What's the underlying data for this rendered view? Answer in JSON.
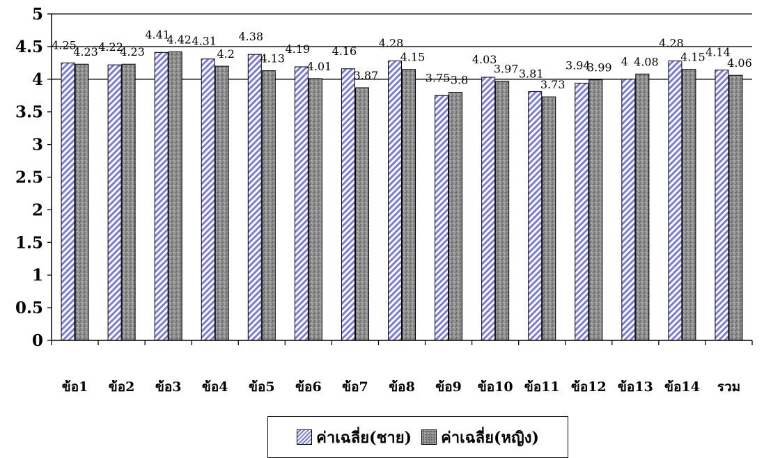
{
  "chart_data": {
    "type": "bar",
    "categories": [
      "ข้อ1",
      "ข้อ2",
      "ข้อ3",
      "ข้อ4",
      "ข้อ5",
      "ข้อ6",
      "ข้อ7",
      "ข้อ8",
      "ข้อ9",
      "ข้อ10",
      "ข้อ11",
      "ข้อ12",
      "ข้อ13",
      "ข้อ14",
      "รวม"
    ],
    "series": [
      {
        "name": "ค่าเฉลี่ย(ชาย)",
        "values": [
          4.25,
          4.22,
          4.41,
          4.31,
          4.38,
          4.19,
          4.16,
          4.28,
          3.75,
          4.03,
          3.81,
          3.94,
          4,
          4.28,
          4.14
        ]
      },
      {
        "name": "ค่าเฉลี่ย(หญิง)",
        "values": [
          4.23,
          4.23,
          4.42,
          4.2,
          4.13,
          4.01,
          3.87,
          4.15,
          3.8,
          3.97,
          3.73,
          3.99,
          4.08,
          4.15,
          4.06
        ]
      }
    ],
    "data_labels": [
      [
        "4.25",
        "4.22",
        "4.41",
        "4.31",
        "4.38",
        "4.19",
        "4.16",
        "4.28",
        "3.75",
        "4.03",
        "3.81",
        "3.94",
        "4",
        "4.28",
        "4.14"
      ],
      [
        "4.23",
        "4.23",
        "4.42",
        "4.2",
        "4.13",
        "4.01",
        "3.87",
        "4.15",
        "3.8",
        "3.97",
        "3.73",
        "3.99",
        "4.08",
        "4.15",
        "4.06"
      ]
    ],
    "ylim": [
      0,
      5
    ],
    "yticks": [
      "0",
      "0.5",
      "1",
      "1.5",
      "2",
      "2.5",
      "3",
      "3.5",
      "4",
      "4.5",
      "5"
    ],
    "ygrid": [
      4,
      4.5,
      5
    ],
    "legend_position": "bottom",
    "colors": {
      "male_stripe": "#7b7bd9",
      "female_fill": "#8c8c8c",
      "axis": "#000000"
    }
  }
}
